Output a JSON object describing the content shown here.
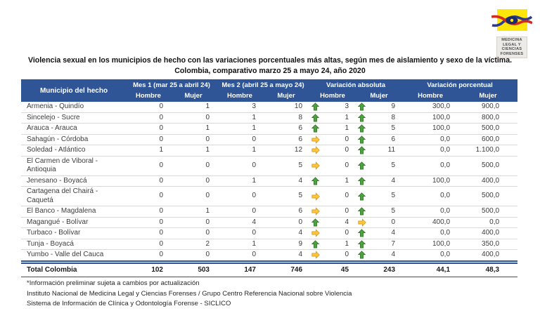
{
  "logo": {
    "lines": [
      "MEDICINA",
      "LEGAL Y",
      "CIENCIAS",
      "FORENSES"
    ]
  },
  "title": {
    "line1": "Violencia sexual en los municipios de hecho con las variaciones porcentuales más altas, según mes de aislamiento y sexo de la víctima.",
    "line2": "Colombia, comparativo marzo 25 a mayo 24, año 2020"
  },
  "table": {
    "col_groups": [
      {
        "label": "Municipio del hecho"
      },
      {
        "label": "Mes 1 (mar 25 a abril 24)",
        "sub": [
          "Hombre",
          "Mujer"
        ]
      },
      {
        "label": "Mes 2 (abril 25 a mayo 24)",
        "sub": [
          "Hombre",
          "Mujer"
        ]
      },
      {
        "label": "Variación absoluta",
        "sub": [
          "Hombre",
          "Mujer"
        ]
      },
      {
        "label": "Variación porcentual",
        "sub": [
          "Hombre",
          "Mujer"
        ]
      }
    ],
    "rows": [
      {
        "municipio": "Armenia - Quindío",
        "mes1_hombre": "0",
        "mes1_mujer": "1",
        "mes2_hombre": "3",
        "mes2_mujer": "10",
        "va_hombre": {
          "icon": "up",
          "value": "3"
        },
        "va_mujer": {
          "icon": "up",
          "value": "9"
        },
        "vp_hombre": "300,0",
        "vp_mujer": "900,0"
      },
      {
        "municipio": "Sincelejo - Sucre",
        "mes1_hombre": "0",
        "mes1_mujer": "0",
        "mes2_hombre": "1",
        "mes2_mujer": "8",
        "va_hombre": {
          "icon": "up",
          "value": "1"
        },
        "va_mujer": {
          "icon": "up",
          "value": "8"
        },
        "vp_hombre": "100,0",
        "vp_mujer": "800,0"
      },
      {
        "municipio": "Arauca - Arauca",
        "mes1_hombre": "0",
        "mes1_mujer": "1",
        "mes2_hombre": "1",
        "mes2_mujer": "6",
        "va_hombre": {
          "icon": "up",
          "value": "1"
        },
        "va_mujer": {
          "icon": "up",
          "value": "5"
        },
        "vp_hombre": "100,0",
        "vp_mujer": "500,0"
      },
      {
        "municipio": "Sahagún - Córdoba",
        "mes1_hombre": "0",
        "mes1_mujer": "0",
        "mes2_hombre": "0",
        "mes2_mujer": "6",
        "va_hombre": {
          "icon": "right",
          "value": "0"
        },
        "va_mujer": {
          "icon": "up",
          "value": "6"
        },
        "vp_hombre": "0,0",
        "vp_mujer": "600,0"
      },
      {
        "municipio": "Soledad - Atlántico",
        "mes1_hombre": "1",
        "mes1_mujer": "1",
        "mes2_hombre": "1",
        "mes2_mujer": "12",
        "va_hombre": {
          "icon": "right",
          "value": "0"
        },
        "va_mujer": {
          "icon": "up",
          "value": "11"
        },
        "vp_hombre": "0,0",
        "vp_mujer": "1.100,0"
      },
      {
        "municipio": "El Carmen de Viboral - Antioquia",
        "mes1_hombre": "0",
        "mes1_mujer": "0",
        "mes2_hombre": "0",
        "mes2_mujer": "5",
        "va_hombre": {
          "icon": "right",
          "value": "0"
        },
        "va_mujer": {
          "icon": "up",
          "value": "5"
        },
        "vp_hombre": "0,0",
        "vp_mujer": "500,0"
      },
      {
        "municipio": "Jenesano - Boyacá",
        "mes1_hombre": "0",
        "mes1_mujer": "0",
        "mes2_hombre": "1",
        "mes2_mujer": "4",
        "va_hombre": {
          "icon": "up",
          "value": "1"
        },
        "va_mujer": {
          "icon": "up",
          "value": "4"
        },
        "vp_hombre": "100,0",
        "vp_mujer": "400,0"
      },
      {
        "municipio": "Cartagena del Chairá - Caquetá",
        "mes1_hombre": "0",
        "mes1_mujer": "0",
        "mes2_hombre": "0",
        "mes2_mujer": "5",
        "va_hombre": {
          "icon": "right",
          "value": "0"
        },
        "va_mujer": {
          "icon": "up",
          "value": "5"
        },
        "vp_hombre": "0,0",
        "vp_mujer": "500,0"
      },
      {
        "municipio": "El Banco - Magdalena",
        "mes1_hombre": "0",
        "mes1_mujer": "1",
        "mes2_hombre": "0",
        "mes2_mujer": "6",
        "va_hombre": {
          "icon": "right",
          "value": "0"
        },
        "va_mujer": {
          "icon": "up",
          "value": "5"
        },
        "vp_hombre": "0,0",
        "vp_mujer": "500,0"
      },
      {
        "municipio": "Magangué - Bolívar",
        "mes1_hombre": "0",
        "mes1_mujer": "0",
        "mes2_hombre": "4",
        "mes2_mujer": "0",
        "va_hombre": {
          "icon": "up",
          "value": "4"
        },
        "va_mujer": {
          "icon": "right",
          "value": "0"
        },
        "vp_hombre": "400,0",
        "vp_mujer": "0,0"
      },
      {
        "municipio": "Turbaco - Bolívar",
        "mes1_hombre": "0",
        "mes1_mujer": "0",
        "mes2_hombre": "0",
        "mes2_mujer": "4",
        "va_hombre": {
          "icon": "right",
          "value": "0"
        },
        "va_mujer": {
          "icon": "up",
          "value": "4"
        },
        "vp_hombre": "0,0",
        "vp_mujer": "400,0"
      },
      {
        "municipio": "Tunja - Boyacá",
        "mes1_hombre": "0",
        "mes1_mujer": "2",
        "mes2_hombre": "1",
        "mes2_mujer": "9",
        "va_hombre": {
          "icon": "up",
          "value": "1"
        },
        "va_mujer": {
          "icon": "up",
          "value": "7"
        },
        "vp_hombre": "100,0",
        "vp_mujer": "350,0"
      },
      {
        "municipio": "Yumbo - Valle del Cauca",
        "mes1_hombre": "0",
        "mes1_mujer": "0",
        "mes2_hombre": "0",
        "mes2_mujer": "4",
        "va_hombre": {
          "icon": "right",
          "value": "0"
        },
        "va_mujer": {
          "icon": "up",
          "value": "4"
        },
        "vp_hombre": "0,0",
        "vp_mujer": "400,0"
      }
    ],
    "total": {
      "label": "Total Colombia",
      "values": [
        "102",
        "503",
        "147",
        "746",
        "45",
        "243",
        "44,1",
        "48,3"
      ]
    }
  },
  "footnotes": [
    "*Información preliminar sujeta a cambios por actualización",
    "Instituto Nacional de Medicina Legal y Ciencias Forenses / Grupo Centro Referencia Nacional sobre Violencia",
    "Sistema de Información de Clínica y Odontología Forense - SICLICO"
  ],
  "colors": {
    "header_bg": "#2F5597",
    "header_text": "#FFFFFF",
    "arrow_up": "#4CA33F",
    "arrow_up_border": "#35782A",
    "arrow_right": "#FFC63E",
    "arrow_right_border": "#DB9B16",
    "total_rule": "#2F5597",
    "logo_yellow": "#FFE60A",
    "logo_red": "#D42A20",
    "logo_blue": "#2B3990",
    "logo_navy": "#1B2A6B"
  }
}
